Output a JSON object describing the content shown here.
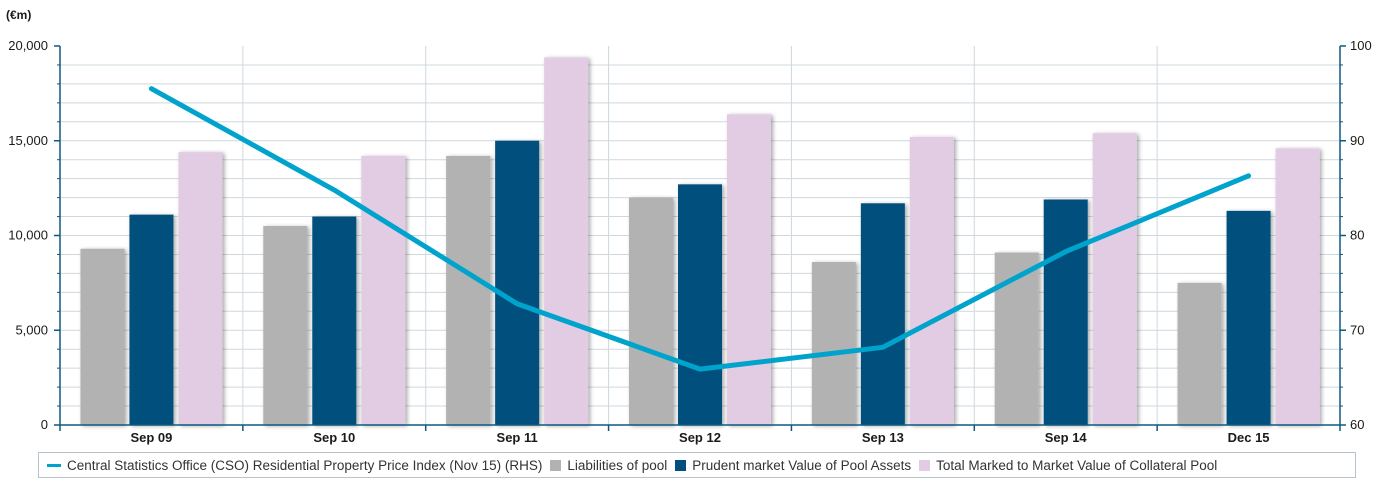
{
  "chart_data": {
    "type": "bar",
    "left_axis_unit": "(€m)",
    "categories": [
      "Sep 09",
      "Sep 10",
      "Sep 11",
      "Sep 12",
      "Sep 13",
      "Sep 14",
      "Dec 15"
    ],
    "ylim_left": [
      0,
      20000
    ],
    "yticks_left": [
      "0",
      "5,000",
      "10,000",
      "15,000",
      "20,000"
    ],
    "ylim_right": [
      60,
      100
    ],
    "yticks_right": [
      "60",
      "70",
      "80",
      "90",
      "100"
    ],
    "grid": true,
    "legend_position": "bottom",
    "series": [
      {
        "name": "Liabilities of pool",
        "kind": "bar",
        "axis": "left",
        "color": "#b2b2b2",
        "values": [
          9300,
          10500,
          14200,
          12000,
          8600,
          9100,
          7500
        ]
      },
      {
        "name": "Prudent market Value of Pool Assets",
        "kind": "bar",
        "axis": "left",
        "color": "#004f7c",
        "values": [
          11100,
          11000,
          15000,
          12700,
          11700,
          11900,
          11300
        ]
      },
      {
        "name": "Total Marked to Market Value of Collateral Pool",
        "kind": "bar",
        "axis": "left",
        "color": "#e2cce3",
        "values": [
          14400,
          14200,
          19400,
          16400,
          15200,
          15400,
          14600
        ]
      },
      {
        "name": "Central Statistics Office (CSO) Residential Property Price Index (Nov 15) (RHS)",
        "kind": "line",
        "axis": "right",
        "color": "#00a3cc",
        "values": [
          95.5,
          84.8,
          72.8,
          65.9,
          68.2,
          78.3,
          86.3
        ]
      }
    ]
  },
  "legend": {
    "line_label": "Central Statistics Office (CSO) Residential Property Price Index (Nov 15) (RHS)",
    "bar1_label": "Liabilities of pool",
    "bar2_label": "Prudent market Value of Pool Assets",
    "bar3_label": "Total Marked to Market Value of Collateral Pool"
  }
}
